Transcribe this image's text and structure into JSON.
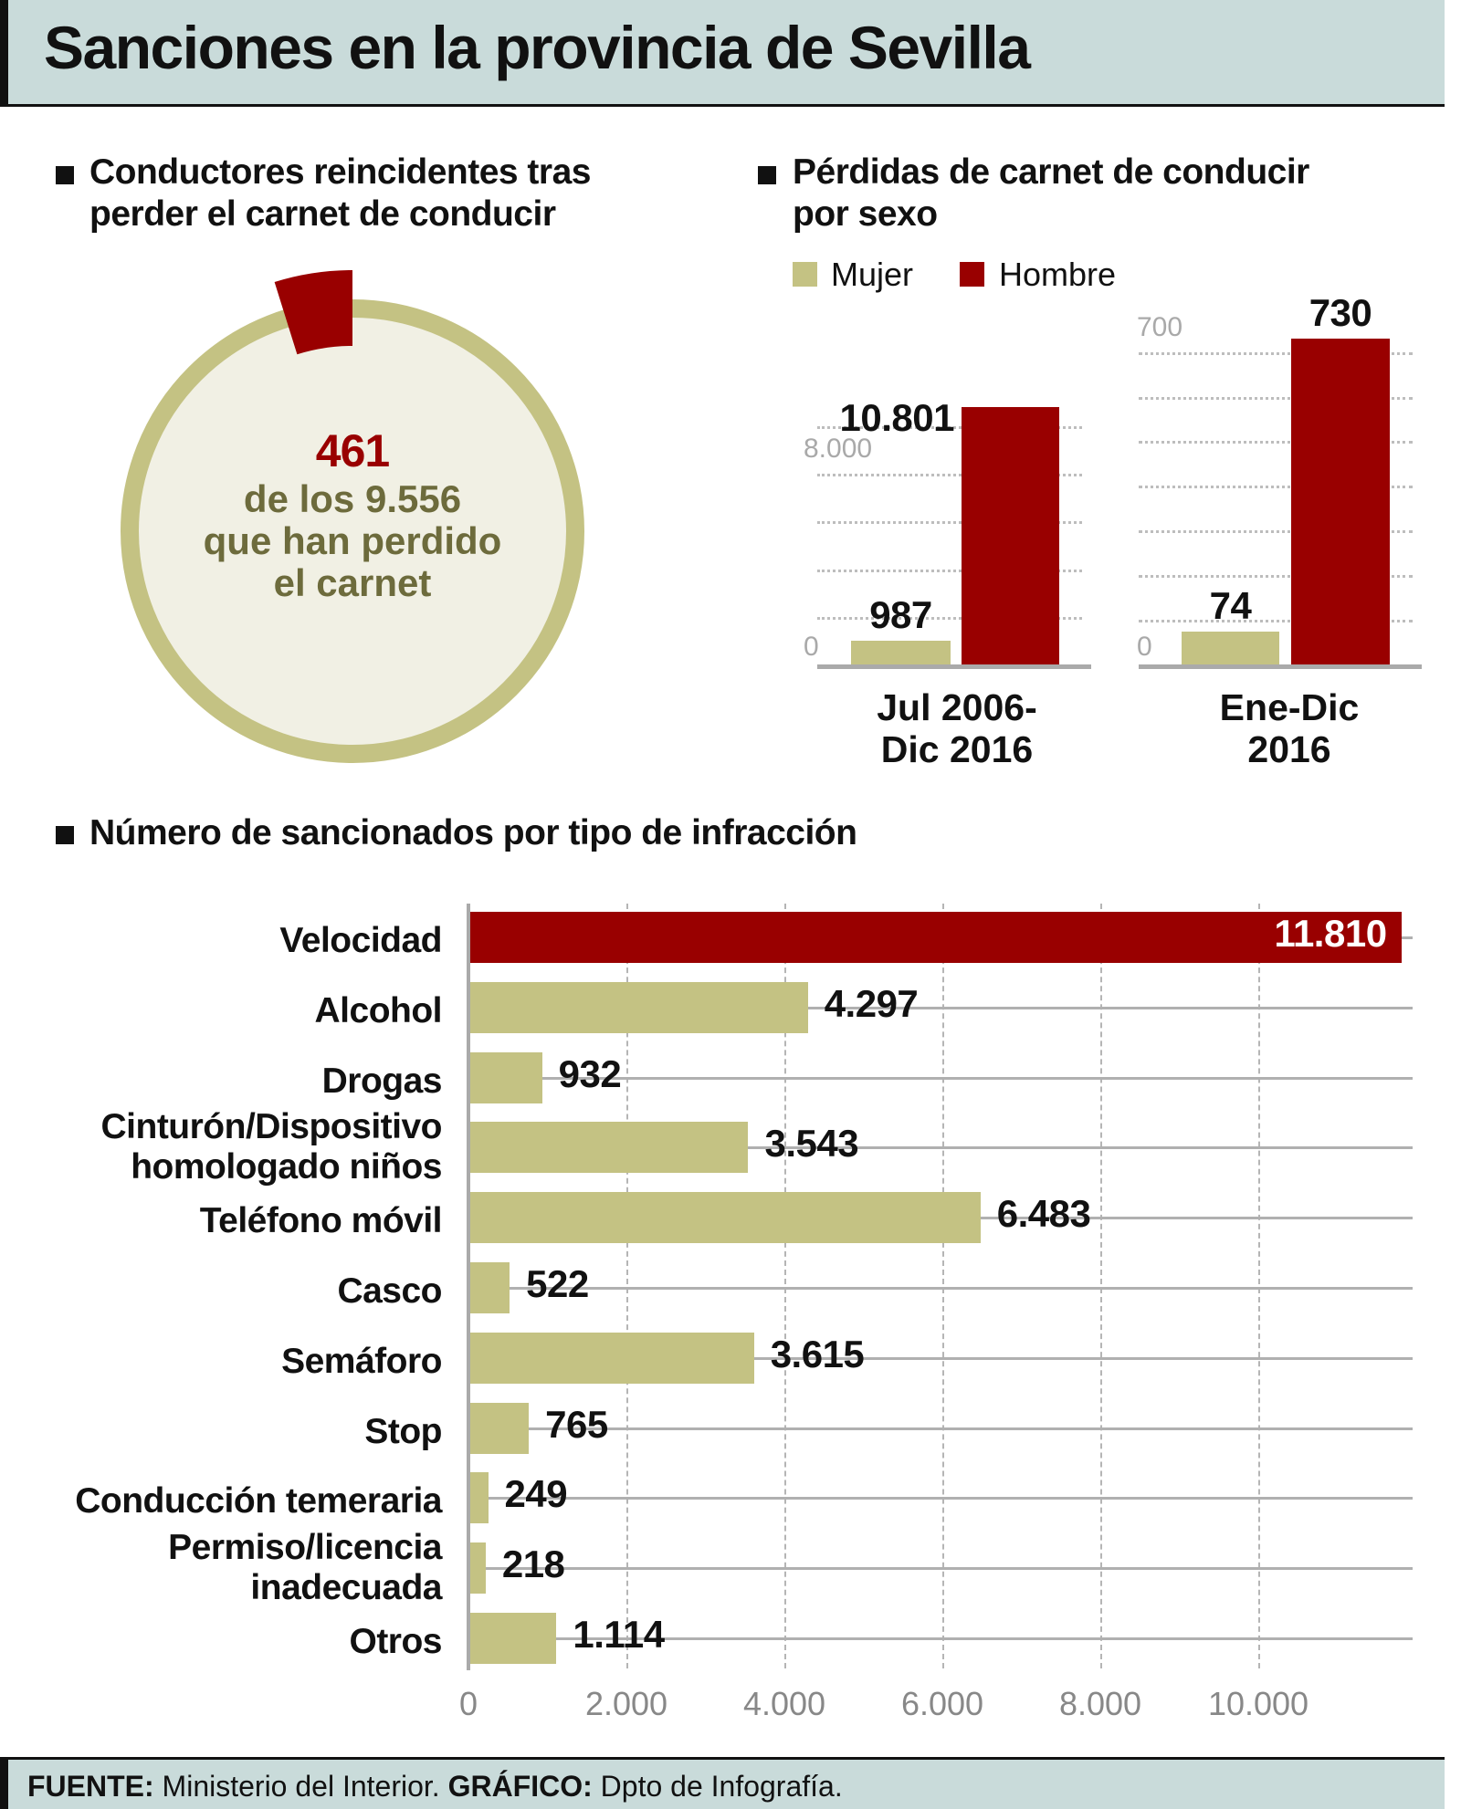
{
  "title": "Sanciones en la provincia de Sevilla",
  "colors": {
    "olive": "#c4c283",
    "red": "#990000",
    "header_bg": "#c9dbda",
    "circle_fill": "#f1f0e4",
    "olive_text": "#6d6b3c"
  },
  "section1": {
    "title_line1": "Conductores reincidentes tras",
    "title_line2": "perder el carnet de conducir",
    "highlight": "461",
    "text_line1": "de los 9.556",
    "text_line2": "que han perdido",
    "text_line3": "el carnet"
  },
  "section2": {
    "title_line1": "Pérdidas de carnet de conducir",
    "title_line2": "por sexo",
    "legend": [
      "Mujer",
      "Hombre"
    ]
  },
  "section3": {
    "title": "Número de sancionados por tipo de infracción"
  },
  "footer": {
    "source_label": "FUENTE:",
    "source": "Ministerio del Interior.",
    "graphic_label": "GRÁFICO:",
    "graphic": "Dpto de Infografía."
  },
  "chart_data": [
    {
      "type": "pie",
      "values": [
        461,
        9556
      ],
      "value_labels": [
        "461",
        "9.556"
      ]
    },
    {
      "type": "bar",
      "categories": [
        "Jul 2006-\nDic 2016"
      ],
      "category_lines": [
        "Jul 2006-",
        "Dic 2016"
      ],
      "series": [
        {
          "name": "Mujer",
          "values": [
            987
          ],
          "labels": [
            "987"
          ]
        },
        {
          "name": "Hombre",
          "values": [
            10801
          ],
          "labels": [
            "10.801"
          ]
        }
      ],
      "ylim": [
        0,
        10801
      ],
      "yticks": [
        0,
        2000,
        4000,
        6000,
        8000,
        10000
      ],
      "ytick_labels_shown": [
        {
          "value": 0,
          "label": "0"
        },
        {
          "value": 8000,
          "label": "8.000"
        }
      ],
      "grid": true
    },
    {
      "type": "bar",
      "categories": [
        "Ene-Dic\n2016"
      ],
      "category_lines": [
        "Ene-Dic",
        "2016"
      ],
      "series": [
        {
          "name": "Mujer",
          "values": [
            74
          ],
          "labels": [
            "74"
          ]
        },
        {
          "name": "Hombre",
          "values": [
            730
          ],
          "labels": [
            "730"
          ]
        }
      ],
      "ylim": [
        0,
        730
      ],
      "yticks": [
        0,
        100,
        200,
        300,
        400,
        500,
        600,
        700
      ],
      "ytick_labels_shown": [
        {
          "value": 0,
          "label": "0"
        },
        {
          "value": 700,
          "label": "700"
        }
      ],
      "grid": true
    },
    {
      "type": "bar",
      "orientation": "horizontal",
      "categories": [
        [
          "Velocidad"
        ],
        [
          "Alcohol"
        ],
        [
          "Drogas"
        ],
        [
          "Cinturón/Dispositivo",
          "homologado niños"
        ],
        [
          "Teléfono móvil"
        ],
        [
          "Casco"
        ],
        [
          "Semáforo"
        ],
        [
          "Stop"
        ],
        [
          "Conducción temeraria"
        ],
        [
          "Permiso/licencia",
          "inadecuada"
        ],
        [
          "Otros"
        ]
      ],
      "values": [
        11810,
        4297,
        932,
        3543,
        6483,
        522,
        3615,
        765,
        249,
        218,
        1114
      ],
      "value_labels": [
        "11.810",
        "4.297",
        "932",
        "3.543",
        "6.483",
        "522",
        "3.615",
        "765",
        "249",
        "218",
        "1.114"
      ],
      "highlight_index": 0,
      "xlim": [
        0,
        11810
      ],
      "xticks": [
        0,
        2000,
        4000,
        6000,
        8000,
        10000
      ],
      "xtick_labels": [
        "0",
        "2.000",
        "4.000",
        "6.000",
        "8.000",
        "10.000"
      ],
      "grid": true
    }
  ]
}
